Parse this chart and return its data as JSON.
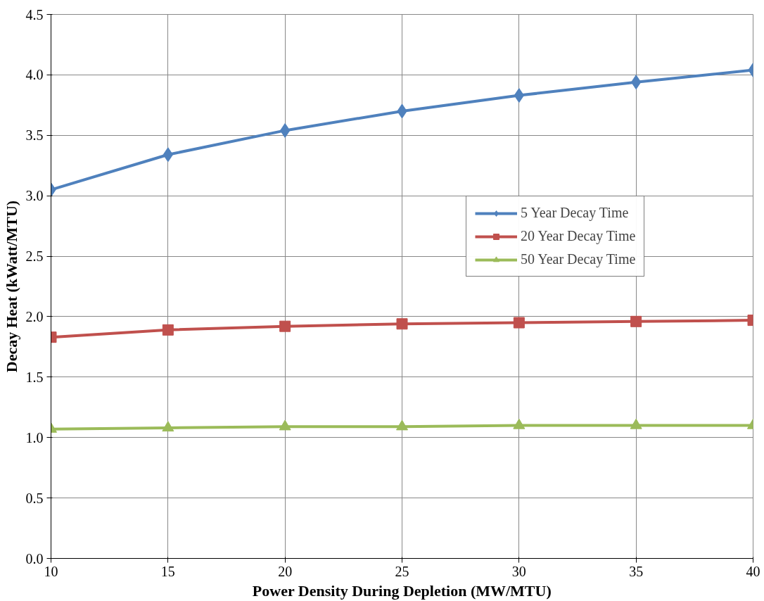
{
  "chart_data": {
    "type": "line",
    "xlabel": "Power Density During Depletion (MW/MTU)",
    "ylabel": "Decay Heat (kWatt/MTU)",
    "x": [
      10,
      15,
      20,
      25,
      30,
      35,
      40
    ],
    "series": [
      {
        "name": "5 Year Decay Time",
        "color": "#4f81bd",
        "marker": "diamond",
        "values": [
          3.05,
          3.34,
          3.54,
          3.7,
          3.83,
          3.94,
          4.04
        ]
      },
      {
        "name": "20 Year Decay Time",
        "color": "#c0504d",
        "marker": "square",
        "values": [
          1.83,
          1.89,
          1.92,
          1.94,
          1.95,
          1.96,
          1.97
        ]
      },
      {
        "name": "50 Year Decay Time",
        "color": "#9bbb59",
        "marker": "triangle",
        "values": [
          1.07,
          1.08,
          1.09,
          1.09,
          1.1,
          1.1,
          1.1
        ]
      }
    ],
    "xlim": [
      10,
      40
    ],
    "xticks": [
      10,
      15,
      20,
      25,
      30,
      35,
      40
    ],
    "ylim": [
      0,
      4.5
    ],
    "yticks": [
      {
        "value": 0,
        "label": "0.0"
      },
      {
        "value": 0.5,
        "label": "0.5"
      },
      {
        "value": 1,
        "label": "1.0"
      },
      {
        "value": 1.5,
        "label": "1.5"
      },
      {
        "value": 2,
        "label": "2.0"
      },
      {
        "value": 2.5,
        "label": "2.5"
      },
      {
        "value": 3,
        "label": "3.0"
      },
      {
        "value": 3.5,
        "label": "3.5"
      },
      {
        "value": 4,
        "label": "4.0"
      },
      {
        "value": 4.5,
        "label": "4.5"
      }
    ],
    "grid": true,
    "legend": "right",
    "line_style": "solid"
  }
}
